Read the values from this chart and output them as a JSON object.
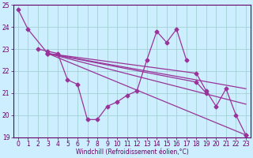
{
  "xlabel": "Windchill (Refroidissement éolien,°C)",
  "background_color": "#cceeff",
  "line_color": "#993399",
  "marker": "D",
  "markersize": 2.5,
  "linewidth": 0.9,
  "xlim": [
    -0.5,
    23.5
  ],
  "ylim": [
    19,
    25
  ],
  "yticks": [
    19,
    20,
    21,
    22,
    23,
    24,
    25
  ],
  "xticks": [
    0,
    1,
    2,
    3,
    4,
    5,
    6,
    7,
    8,
    9,
    10,
    11,
    12,
    13,
    14,
    15,
    16,
    17,
    18,
    19,
    20,
    21,
    22,
    23
  ],
  "series": [
    {
      "x": [
        0,
        1,
        3,
        23
      ],
      "y": [
        24.8,
        23.9,
        22.8,
        19.1
      ],
      "markers_at": [
        0,
        1,
        3,
        23
      ]
    },
    {
      "x": [
        2,
        3,
        4,
        5,
        6,
        7,
        8,
        9,
        10,
        11,
        12,
        13,
        14,
        15,
        16,
        17
      ],
      "y": [
        23.0,
        22.9,
        22.8,
        21.6,
        21.4,
        19.8,
        19.8,
        20.4,
        20.6,
        20.9,
        21.1,
        22.5,
        23.8,
        23.3,
        23.9,
        22.5
      ],
      "markers_at": [
        2,
        3,
        4,
        5,
        6,
        7,
        8,
        9,
        10,
        11,
        12,
        13,
        14,
        15,
        16,
        17
      ]
    },
    {
      "comment": "Line 3: from (3,22.8) nearly straight down-right to (18,21.9),(19,21.1),(20,20.4),(21,21.2),(22,20.0),(23,19.1)",
      "x": [
        3,
        18,
        19,
        20,
        21,
        22,
        23
      ],
      "y": [
        22.8,
        21.9,
        21.1,
        20.4,
        21.2,
        20.0,
        19.1
      ],
      "markers_at": [
        3,
        18,
        19,
        20,
        21,
        22,
        23
      ]
    },
    {
      "comment": "Line 4: straight from (3,22.8) to (18,21.5),(19,21.0)",
      "x": [
        3,
        18,
        19
      ],
      "y": [
        22.8,
        21.5,
        21.0
      ],
      "markers_at": [
        3,
        18,
        19
      ]
    },
    {
      "x": [
        3,
        23
      ],
      "y": [
        22.8,
        21.2
      ],
      "markers_at": []
    },
    {
      "x": [
        3,
        23
      ],
      "y": [
        22.8,
        20.5
      ],
      "markers_at": []
    }
  ]
}
